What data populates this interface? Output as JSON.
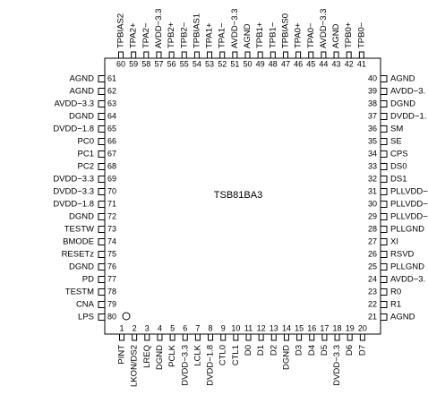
{
  "chip_label": "TSB81BA3",
  "top_pins": [
    {
      "number": 60,
      "name": "TPBIAS2"
    },
    {
      "number": 59,
      "name": "TPA2+"
    },
    {
      "number": 58,
      "name": "TPA2−"
    },
    {
      "number": 57,
      "name": "AVDD−3.3"
    },
    {
      "number": 56,
      "name": "TPB2+"
    },
    {
      "number": 55,
      "name": "TPB2−"
    },
    {
      "number": 54,
      "name": "TPBIAS1"
    },
    {
      "number": 53,
      "name": "TPA1+"
    },
    {
      "number": 52,
      "name": "TPA1−"
    },
    {
      "number": 51,
      "name": "AVDD−3.3"
    },
    {
      "number": 50,
      "name": "AGND"
    },
    {
      "number": 49,
      "name": "TPB1+"
    },
    {
      "number": 48,
      "name": "TPB1−"
    },
    {
      "number": 47,
      "name": "TPBIAS0"
    },
    {
      "number": 46,
      "name": "TPA0+"
    },
    {
      "number": 45,
      "name": "TPA0−"
    },
    {
      "number": 44,
      "name": "AVDD−3.3"
    },
    {
      "number": 43,
      "name": "AGND"
    },
    {
      "number": 42,
      "name": "TPB0+"
    },
    {
      "number": 41,
      "name": "TPB0−"
    }
  ],
  "left_pins": [
    {
      "number": 61,
      "name": "AGND"
    },
    {
      "number": 62,
      "name": "AGND"
    },
    {
      "number": 63,
      "name": "AVDD−3.3"
    },
    {
      "number": 64,
      "name": "DGND"
    },
    {
      "number": 65,
      "name": "DVDD−1.8"
    },
    {
      "number": 66,
      "name": "PC0"
    },
    {
      "number": 67,
      "name": "PC1"
    },
    {
      "number": 68,
      "name": "PC2"
    },
    {
      "number": 69,
      "name": "DVDD−3.3"
    },
    {
      "number": 70,
      "name": "DVDD−3.3"
    },
    {
      "number": 71,
      "name": "DVDD−1.8"
    },
    {
      "number": 72,
      "name": "DGND"
    },
    {
      "number": 73,
      "name": "TESTW"
    },
    {
      "number": 74,
      "name": "BMODE"
    },
    {
      "number": 75,
      "name": "RESETz"
    },
    {
      "number": 76,
      "name": "DGND"
    },
    {
      "number": 77,
      "name": "PD"
    },
    {
      "number": 78,
      "name": "TESTM"
    },
    {
      "number": 79,
      "name": "CNA"
    },
    {
      "number": 80,
      "name": "LPS"
    }
  ],
  "right_pins": [
    {
      "number": 40,
      "name": "AGND"
    },
    {
      "number": 39,
      "name": "AVDD−3."
    },
    {
      "number": 38,
      "name": "DGND"
    },
    {
      "number": 37,
      "name": "DVDD−1."
    },
    {
      "number": 36,
      "name": "SM"
    },
    {
      "number": 35,
      "name": "SE"
    },
    {
      "number": 34,
      "name": "CPS"
    },
    {
      "number": 33,
      "name": "DS0"
    },
    {
      "number": 32,
      "name": "DS1"
    },
    {
      "number": 31,
      "name": "PLLVDD−"
    },
    {
      "number": 30,
      "name": "PLLVDD−"
    },
    {
      "number": 29,
      "name": "PLLVDD−"
    },
    {
      "number": 28,
      "name": "PLLGND"
    },
    {
      "number": 27,
      "name": "XI"
    },
    {
      "number": 26,
      "name": "RSVD"
    },
    {
      "number": 25,
      "name": "PLLGND"
    },
    {
      "number": 24,
      "name": "AVDD−3."
    },
    {
      "number": 23,
      "name": "R0"
    },
    {
      "number": 22,
      "name": "R1"
    },
    {
      "number": 21,
      "name": "AGND"
    }
  ],
  "bottom_pins": [
    {
      "number": 1,
      "name": "PINT"
    },
    {
      "number": 2,
      "name": "LKON/DS2"
    },
    {
      "number": 3,
      "name": "LREQ"
    },
    {
      "number": 4,
      "name": "DGND"
    },
    {
      "number": 5,
      "name": "PCLK"
    },
    {
      "number": 6,
      "name": "DVDD−3.3"
    },
    {
      "number": 7,
      "name": "LCLK"
    },
    {
      "number": 8,
      "name": "DVDD−1.8"
    },
    {
      "number": 9,
      "name": "CTL0"
    },
    {
      "number": 10,
      "name": "CTL1"
    },
    {
      "number": 11,
      "name": "D0"
    },
    {
      "number": 12,
      "name": "D1"
    },
    {
      "number": 13,
      "name": "D2"
    },
    {
      "number": 14,
      "name": "DGND"
    },
    {
      "number": 15,
      "name": "D3"
    },
    {
      "number": 16,
      "name": "D4"
    },
    {
      "number": 17,
      "name": "D5"
    },
    {
      "number": 18,
      "name": "DVDD−3.3"
    },
    {
      "number": 19,
      "name": "D6"
    },
    {
      "number": 20,
      "name": "D7"
    }
  ]
}
